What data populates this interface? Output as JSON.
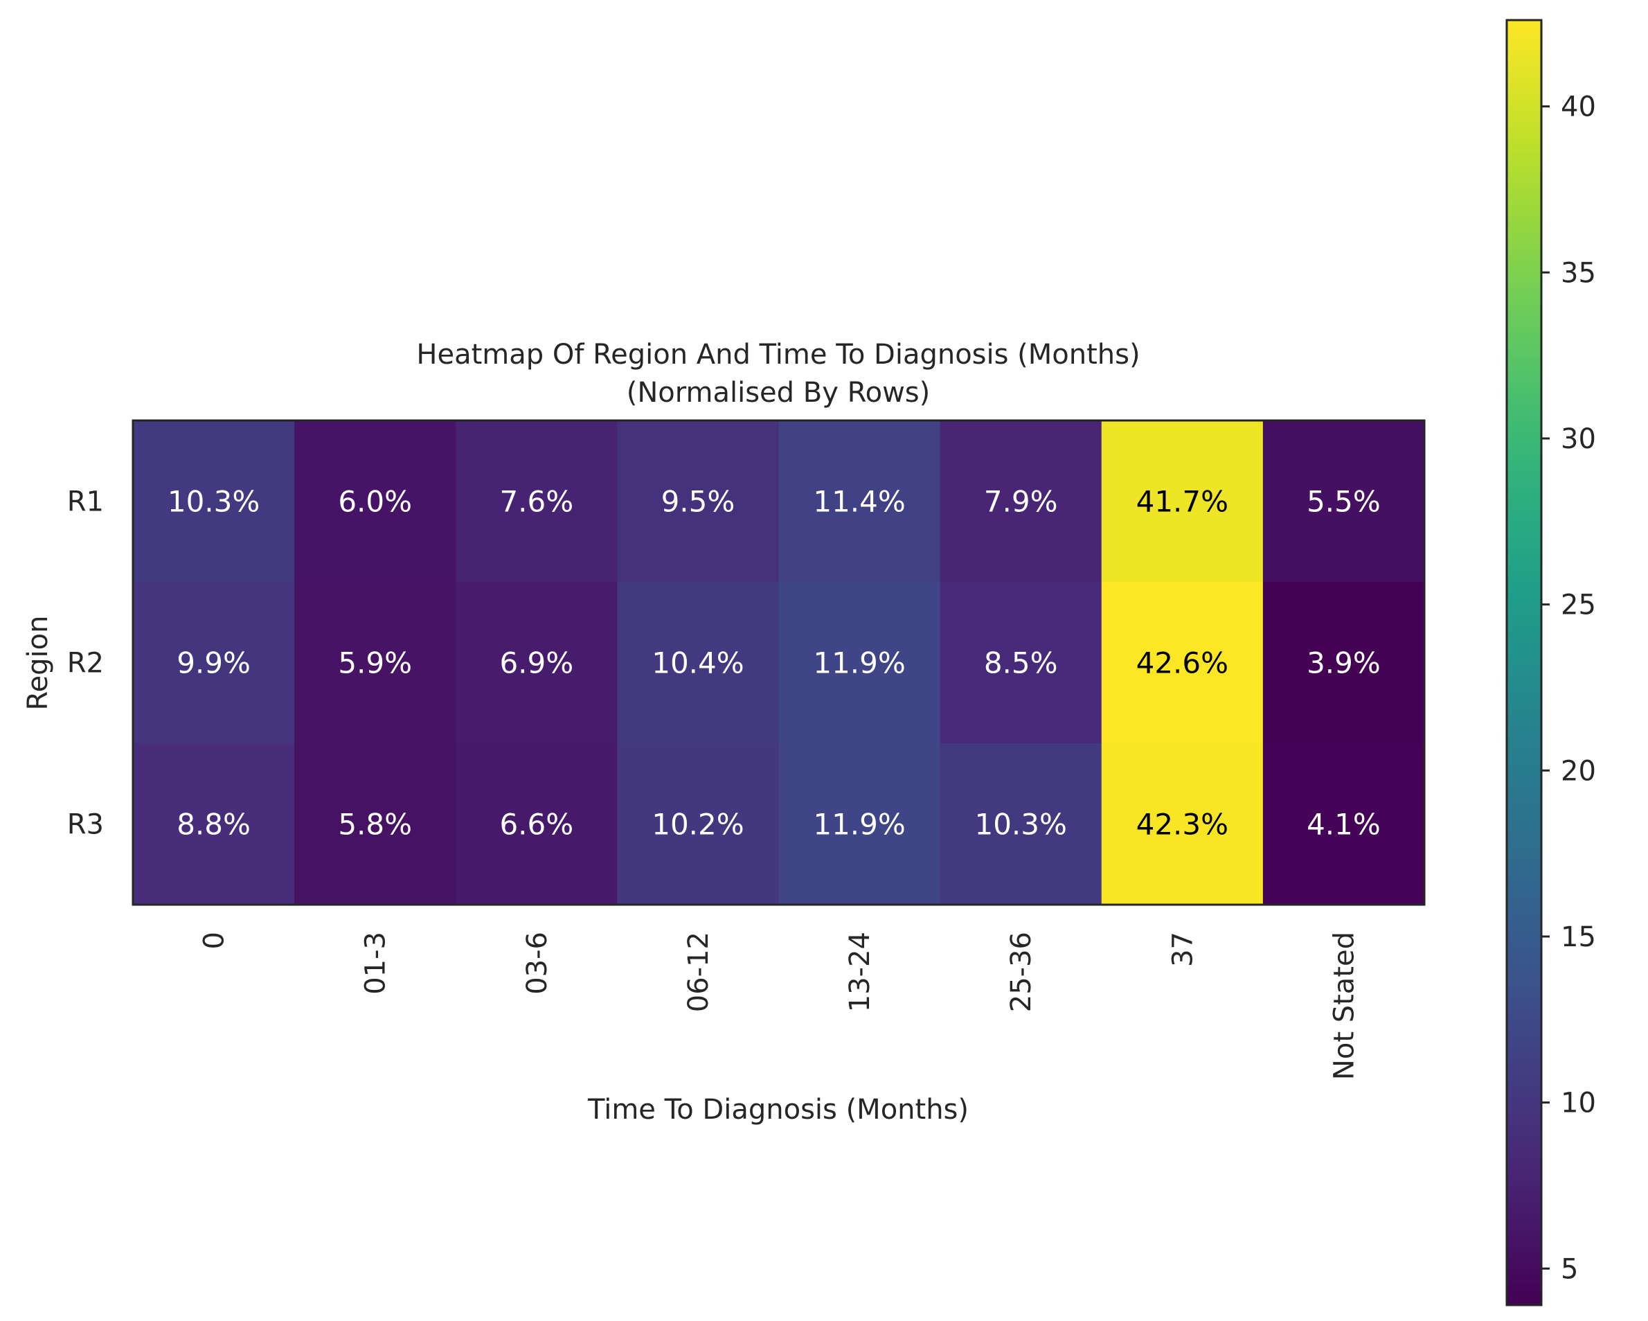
{
  "chart_data": {
    "type": "heatmap",
    "title": "Heatmap Of Region And Time To Diagnosis (Months)",
    "subtitle": "(Normalised By Rows)",
    "xlabel": "Time To Diagnosis (Months)",
    "ylabel": "Region",
    "x_categories": [
      "0",
      "01-3",
      "03-6",
      "06-12",
      "13-24",
      "25-36",
      "37",
      "Not Stated"
    ],
    "y_categories": [
      "R1",
      "R2",
      "R3"
    ],
    "values": [
      [
        10.3,
        6.0,
        7.6,
        9.5,
        11.4,
        7.9,
        41.7,
        5.5
      ],
      [
        9.9,
        5.9,
        6.9,
        10.4,
        11.9,
        8.5,
        42.6,
        3.9
      ],
      [
        8.8,
        5.8,
        6.6,
        10.2,
        11.9,
        10.3,
        42.3,
        4.1
      ]
    ],
    "cell_labels": [
      [
        "10.3%",
        "6.0%",
        "7.6%",
        "9.5%",
        "11.4%",
        "7.9%",
        "41.7%",
        "5.5%"
      ],
      [
        "9.9%",
        "5.9%",
        "6.9%",
        "10.4%",
        "11.9%",
        "8.5%",
        "42.6%",
        "3.9%"
      ],
      [
        "8.8%",
        "5.8%",
        "6.6%",
        "10.2%",
        "11.9%",
        "10.3%",
        "42.3%",
        "4.1%"
      ]
    ],
    "colormap": "viridis",
    "color_range": [
      3.9,
      42.6
    ],
    "colorbar_ticks": [
      5,
      10,
      15,
      20,
      25,
      30,
      35,
      40
    ],
    "colorbar_tick_labels": [
      "5",
      "10",
      "15",
      "20",
      "25",
      "30",
      "35",
      "40"
    ],
    "label_color_dark": "#000000",
    "label_color_light": "#ffffff"
  }
}
